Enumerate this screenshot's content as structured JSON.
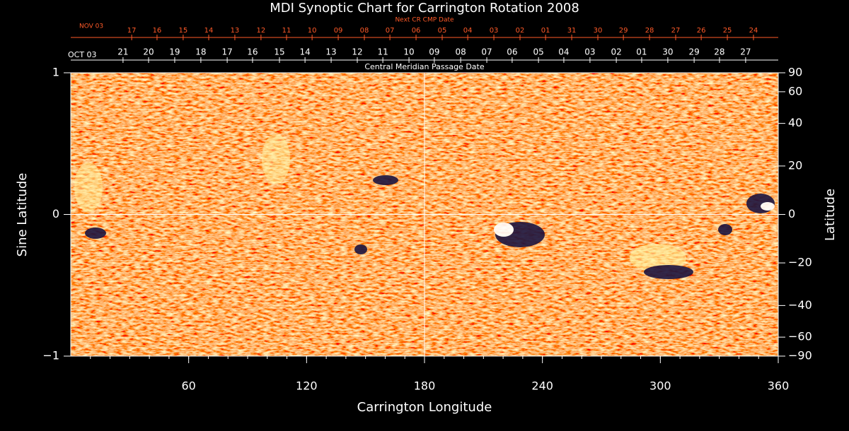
{
  "chart_data": {
    "type": "synoptic-map",
    "title": "MDI Synoptic Chart for Carrington Rotation 2008",
    "x_label": "Carrington Longitude",
    "y_label": "Sine Latitude",
    "y2_label": "Latitude",
    "top_axis_label": "Next CR CMP Date",
    "top_axis_start": "NOV 03",
    "middle_axis_label": "Central Meridian Passage Date",
    "middle_axis_start": "OCT 03",
    "xlim": [
      0,
      360
    ],
    "xticks": [
      60,
      120,
      180,
      240,
      300,
      360
    ],
    "ylim": [
      -1,
      1
    ],
    "yticks": [
      1,
      0,
      {
        "value": -1,
        "label": "−1"
      }
    ],
    "y2ticks": [
      90,
      60,
      40,
      20,
      0,
      {
        "value": -20,
        "label": "−20"
      },
      {
        "value": -40,
        "label": "−40"
      },
      {
        "value": -60,
        "label": "−60"
      },
      {
        "value": -90,
        "label": "−90"
      }
    ],
    "next_cr_dates": [
      {
        "value": 31.0,
        "label": "17"
      },
      {
        "value": 43.9,
        "label": "16"
      },
      {
        "value": 57.2,
        "label": "15"
      },
      {
        "value": 70.2,
        "label": "14"
      },
      {
        "value": 83.5,
        "label": "13"
      },
      {
        "value": 96.8,
        "label": "12"
      },
      {
        "value": 109.8,
        "label": "11"
      },
      {
        "value": 122.8,
        "label": "10"
      },
      {
        "value": 136.1,
        "label": "09"
      },
      {
        "value": 149.4,
        "label": "08"
      },
      {
        "value": 162.4,
        "label": "07"
      },
      {
        "value": 175.7,
        "label": "06"
      },
      {
        "value": 189.0,
        "label": "05"
      },
      {
        "value": 202.0,
        "label": "04"
      },
      {
        "value": 215.3,
        "label": "03"
      },
      {
        "value": 228.6,
        "label": "02"
      },
      {
        "value": 241.6,
        "label": "01"
      },
      {
        "value": 254.9,
        "label": "31"
      },
      {
        "value": 268.2,
        "label": "30"
      },
      {
        "value": 281.2,
        "label": "29"
      },
      {
        "value": 294.5,
        "label": "28"
      },
      {
        "value": 307.8,
        "label": "27"
      },
      {
        "value": 320.8,
        "label": "26"
      },
      {
        "value": 334.1,
        "label": "25"
      },
      {
        "value": 347.4,
        "label": "24"
      }
    ],
    "cmp_dates": [
      {
        "value": 26.6,
        "label": "21"
      },
      {
        "value": 39.6,
        "label": "20"
      },
      {
        "value": 52.9,
        "label": "19"
      },
      {
        "value": 66.2,
        "label": "18"
      },
      {
        "value": 79.6,
        "label": "17"
      },
      {
        "value": 92.5,
        "label": "16"
      },
      {
        "value": 106.2,
        "label": "15"
      },
      {
        "value": 119.2,
        "label": "14"
      },
      {
        "value": 132.5,
        "label": "13"
      },
      {
        "value": 145.8,
        "label": "12"
      },
      {
        "value": 158.8,
        "label": "11"
      },
      {
        "value": 172.1,
        "label": "10"
      },
      {
        "value": 185.0,
        "label": "09"
      },
      {
        "value": 198.4,
        "label": "08"
      },
      {
        "value": 211.7,
        "label": "07"
      },
      {
        "value": 224.6,
        "label": "06"
      },
      {
        "value": 238.0,
        "label": "05"
      },
      {
        "value": 250.9,
        "label": "04"
      },
      {
        "value": 264.2,
        "label": "03"
      },
      {
        "value": 277.6,
        "label": "02"
      },
      {
        "value": 290.5,
        "label": "01"
      },
      {
        "value": 303.8,
        "label": "30"
      },
      {
        "value": 317.2,
        "label": "29"
      },
      {
        "value": 330.1,
        "label": "28"
      },
      {
        "value": 343.4,
        "label": "27"
      }
    ],
    "crosshair": true
  }
}
